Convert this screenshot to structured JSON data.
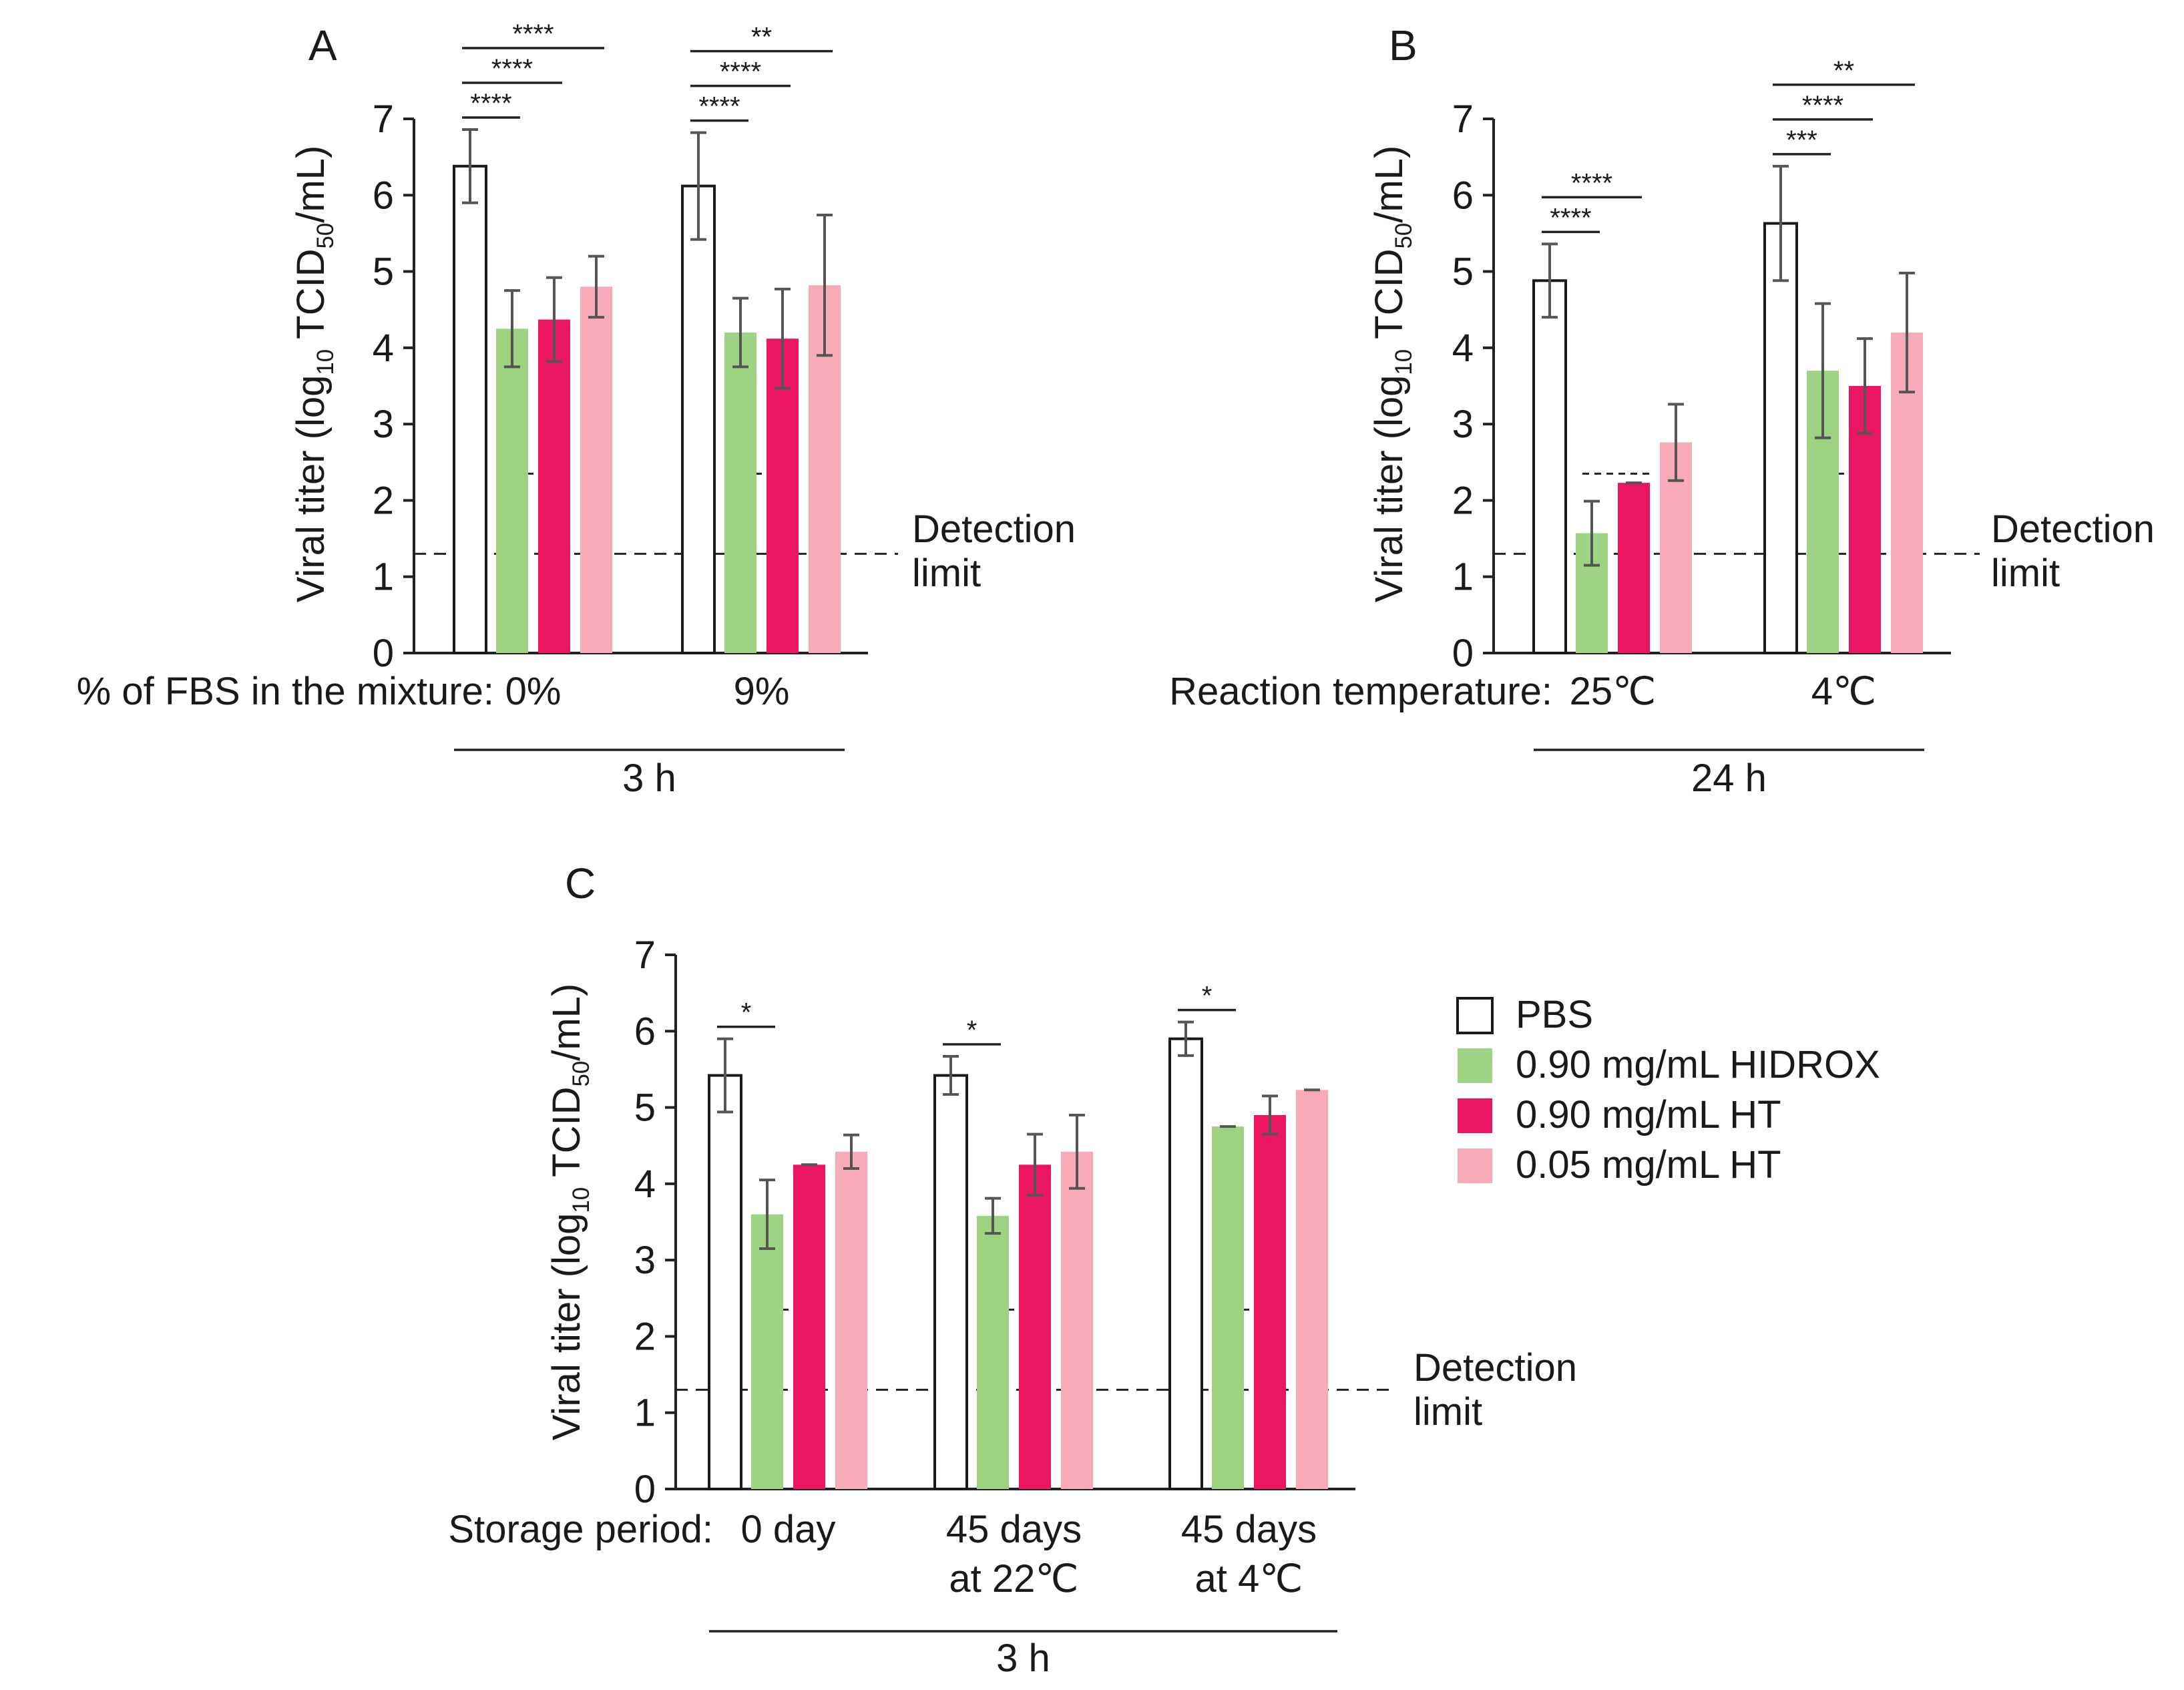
{
  "legend": [
    {
      "label": "PBS",
      "color": "#ffffff",
      "stroke": "#1a1a1a"
    },
    {
      "label": "0.90 mg/mL HIDROX",
      "color": "#9ed384",
      "stroke": "none"
    },
    {
      "label": "0.90 mg/mL HT",
      "color": "#ec1561",
      "stroke": "none"
    },
    {
      "label": "0.05 mg/mL HT",
      "color": "#f7aab7",
      "stroke": "none"
    }
  ],
  "chart_data": [
    {
      "panel": "A",
      "type": "bar",
      "ylabel": "Viral titer (log10 TCID50/mL)",
      "ylim": [
        0,
        7
      ],
      "yticks": [
        "0",
        "1",
        "2",
        "3",
        "4",
        "5",
        "6",
        "7"
      ],
      "category_title": "% of FBS in the mixture:",
      "categories": [
        "0%",
        "9%"
      ],
      "group_label": "3 h",
      "detection_limit": 1.3,
      "detection_label_1": "Detection",
      "detection_label_2": "limit",
      "short_dash_level": 2.35,
      "series": [
        {
          "name": "PBS",
          "values": [
            6.38,
            6.12
          ],
          "errors": [
            0.48,
            0.7
          ]
        },
        {
          "name": "0.90 mg/mL HIDROX",
          "values": [
            4.25,
            4.2
          ],
          "errors": [
            0.5,
            0.45
          ]
        },
        {
          "name": "0.90 mg/mL HT",
          "values": [
            4.37,
            4.12
          ],
          "errors": [
            0.55,
            0.65
          ]
        },
        {
          "name": "0.05 mg/mL HT",
          "values": [
            4.8,
            4.82
          ],
          "errors": [
            0.4,
            0.92
          ]
        }
      ],
      "significance": [
        {
          "group": 0,
          "from": 0,
          "to": 1,
          "label": "****",
          "level": 0
        },
        {
          "group": 0,
          "from": 0,
          "to": 2,
          "label": "****",
          "level": 1
        },
        {
          "group": 0,
          "from": 0,
          "to": 3,
          "label": "****",
          "level": 2
        },
        {
          "group": 1,
          "from": 0,
          "to": 1,
          "label": "****",
          "level": 0
        },
        {
          "group": 1,
          "from": 0,
          "to": 2,
          "label": "****",
          "level": 1
        },
        {
          "group": 1,
          "from": 0,
          "to": 3,
          "label": "**",
          "level": 2
        }
      ]
    },
    {
      "panel": "B",
      "type": "bar",
      "ylabel": "Viral titer (log10 TCID50/mL)",
      "ylim": [
        0,
        7
      ],
      "yticks": [
        "0",
        "1",
        "2",
        "3",
        "4",
        "5",
        "6",
        "7"
      ],
      "category_title": "Reaction temperature:",
      "categories": [
        "25℃",
        "4℃"
      ],
      "group_label": "24 h",
      "detection_limit": 1.3,
      "detection_label_1": "Detection",
      "detection_label_2": "limit",
      "short_dash_level": 2.35,
      "series": [
        {
          "name": "PBS",
          "values": [
            4.88,
            5.63
          ],
          "errors": [
            0.48,
            0.75
          ]
        },
        {
          "name": "0.90 mg/mL HIDROX",
          "values": [
            1.57,
            3.7
          ],
          "errors": [
            0.42,
            0.88
          ]
        },
        {
          "name": "0.90 mg/mL HT",
          "values": [
            2.23,
            3.5
          ],
          "errors": [
            0.0,
            0.62
          ]
        },
        {
          "name": "0.05 mg/mL HT",
          "values": [
            2.76,
            4.2
          ],
          "errors": [
            0.5,
            0.78
          ]
        }
      ],
      "significance": [
        {
          "group": 0,
          "from": 0,
          "to": 1,
          "label": "****",
          "level": 0
        },
        {
          "group": 0,
          "from": 0,
          "to": 2,
          "label": "****",
          "level": 1
        },
        {
          "group": 1,
          "from": 0,
          "to": 1,
          "label": "***",
          "level": 0
        },
        {
          "group": 1,
          "from": 0,
          "to": 2,
          "label": "****",
          "level": 1
        },
        {
          "group": 1,
          "from": 0,
          "to": 3,
          "label": "**",
          "level": 2
        }
      ]
    },
    {
      "panel": "C",
      "type": "bar",
      "ylabel": "Viral titer (log10 TCID50/mL)",
      "ylim": [
        0,
        7
      ],
      "yticks": [
        "0",
        "1",
        "2",
        "3",
        "4",
        "5",
        "6",
        "7"
      ],
      "category_title": "Storage period:",
      "categories": [
        "0 day",
        "45 days at 22℃",
        "45 days at 4℃"
      ],
      "category_lines": [
        [
          "0 day"
        ],
        [
          "45 days",
          "at 22℃"
        ],
        [
          "45 days",
          "at 4℃"
        ]
      ],
      "group_label": "3 h",
      "detection_limit": 1.3,
      "detection_label_1": "Detection",
      "detection_label_2": "limit",
      "short_dash_level": 2.35,
      "series": [
        {
          "name": "PBS",
          "values": [
            5.42,
            5.42,
            5.9
          ],
          "errors": [
            0.48,
            0.25,
            0.22
          ]
        },
        {
          "name": "0.90 mg/mL HIDROX",
          "values": [
            3.6,
            3.58,
            4.75
          ],
          "errors": [
            0.45,
            0.23,
            0.0
          ]
        },
        {
          "name": "0.90 mg/mL HT",
          "values": [
            4.25,
            4.25,
            4.9
          ],
          "errors": [
            0.0,
            0.4,
            0.25
          ]
        },
        {
          "name": "0.05 mg/mL HT",
          "values": [
            4.42,
            4.42,
            5.23
          ],
          "errors": [
            0.22,
            0.48,
            0.0
          ]
        }
      ],
      "significance": [
        {
          "group": 0,
          "from": 0,
          "to": 1,
          "label": "*",
          "level": 0
        },
        {
          "group": 1,
          "from": 0,
          "to": 1,
          "label": "*",
          "level": 0
        },
        {
          "group": 2,
          "from": 0,
          "to": 1,
          "label": "*",
          "level": 0
        }
      ]
    }
  ]
}
